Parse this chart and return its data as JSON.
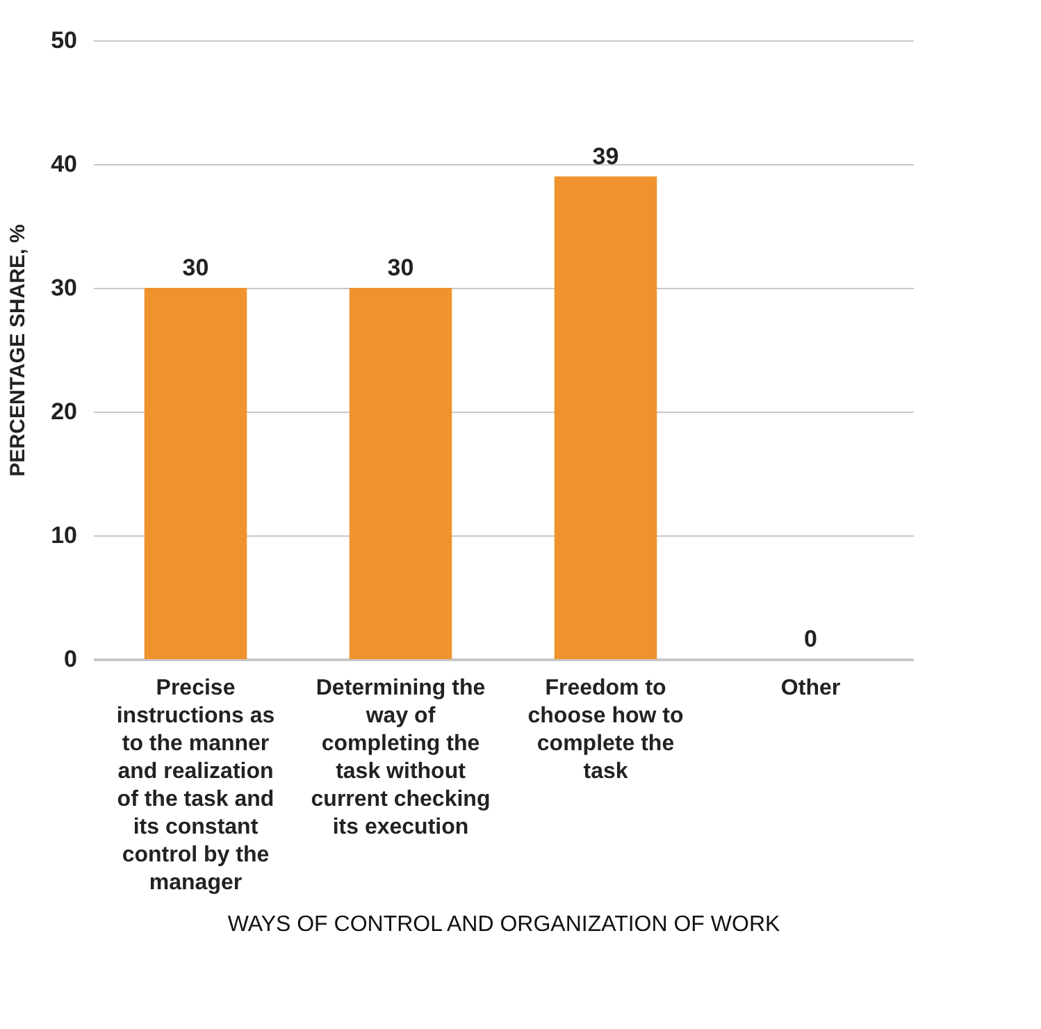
{
  "chart_data": {
    "type": "bar",
    "xlabel": "WAYS OF CONTROL AND ORGANIZATION OF WORK",
    "ylabel": "PERCENTAGE SHARE, %",
    "categories": [
      "Precise instructions as to the manner and realization of the task and its constant control by the manager",
      "Determining the way of completing the task without current checking its execution",
      "Freedom to choose how to complete the task",
      "Other"
    ],
    "values": [
      30,
      30,
      39,
      0
    ],
    "color": "#f0922e",
    "ylim": [
      0,
      50
    ],
    "yticks": [
      0,
      10,
      20,
      30,
      40,
      50
    ],
    "grid": "y",
    "data_labels": true
  }
}
